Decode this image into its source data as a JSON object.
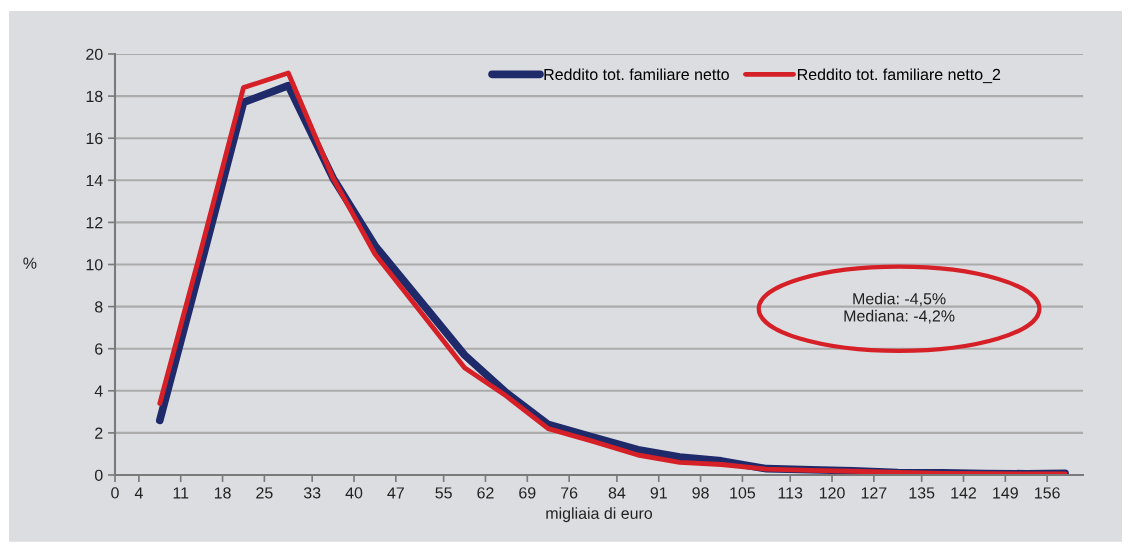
{
  "chart_data": {
    "type": "line",
    "xlabel": "migliaia di euro",
    "ylabel": "%",
    "x": [
      7.5,
      14.5,
      21.5,
      29,
      36.5,
      43.5,
      51,
      58.5,
      65.5,
      72.5,
      80,
      87.5,
      94.5,
      101.5,
      109,
      116.5,
      123.5,
      131,
      138.5,
      145.5,
      152.5,
      159
    ],
    "series": [
      {
        "name": "Reddito tot. familiare netto",
        "color": "#1f2a6b",
        "values": [
          2.6,
          10.1,
          17.7,
          18.5,
          14.1,
          10.9,
          8.3,
          5.7,
          3.9,
          2.4,
          1.8,
          1.2,
          0.85,
          0.67,
          0.3,
          0.25,
          0.2,
          0.12,
          0.1,
          0.07,
          0.06,
          0.08
        ]
      },
      {
        "name": "Reddito tot. familiare netto_2",
        "color": "#d62027",
        "values": [
          3.4,
          10.8,
          18.4,
          19.1,
          14.1,
          10.5,
          7.8,
          5.1,
          3.75,
          2.2,
          1.6,
          0.95,
          0.6,
          0.5,
          0.28,
          0.22,
          0.18,
          0.12,
          0.08,
          0.06,
          0.05,
          0.05
        ]
      }
    ],
    "xlim": [
      0,
      162
    ],
    "xticks": [
      0,
      4,
      11,
      18,
      25,
      33,
      40,
      47,
      55,
      62,
      69,
      76,
      84,
      91,
      98,
      105,
      113,
      120,
      127,
      135,
      142,
      149,
      156
    ],
    "ylim": [
      0,
      20
    ],
    "yticks": [
      0,
      2,
      4,
      6,
      8,
      10,
      12,
      14,
      16,
      18,
      20
    ],
    "grid": "y",
    "legend": "top right",
    "marker": "none",
    "line_style": "solid",
    "annotations": [
      "Media: -4,5%\nMediana: -4,2%"
    ]
  }
}
